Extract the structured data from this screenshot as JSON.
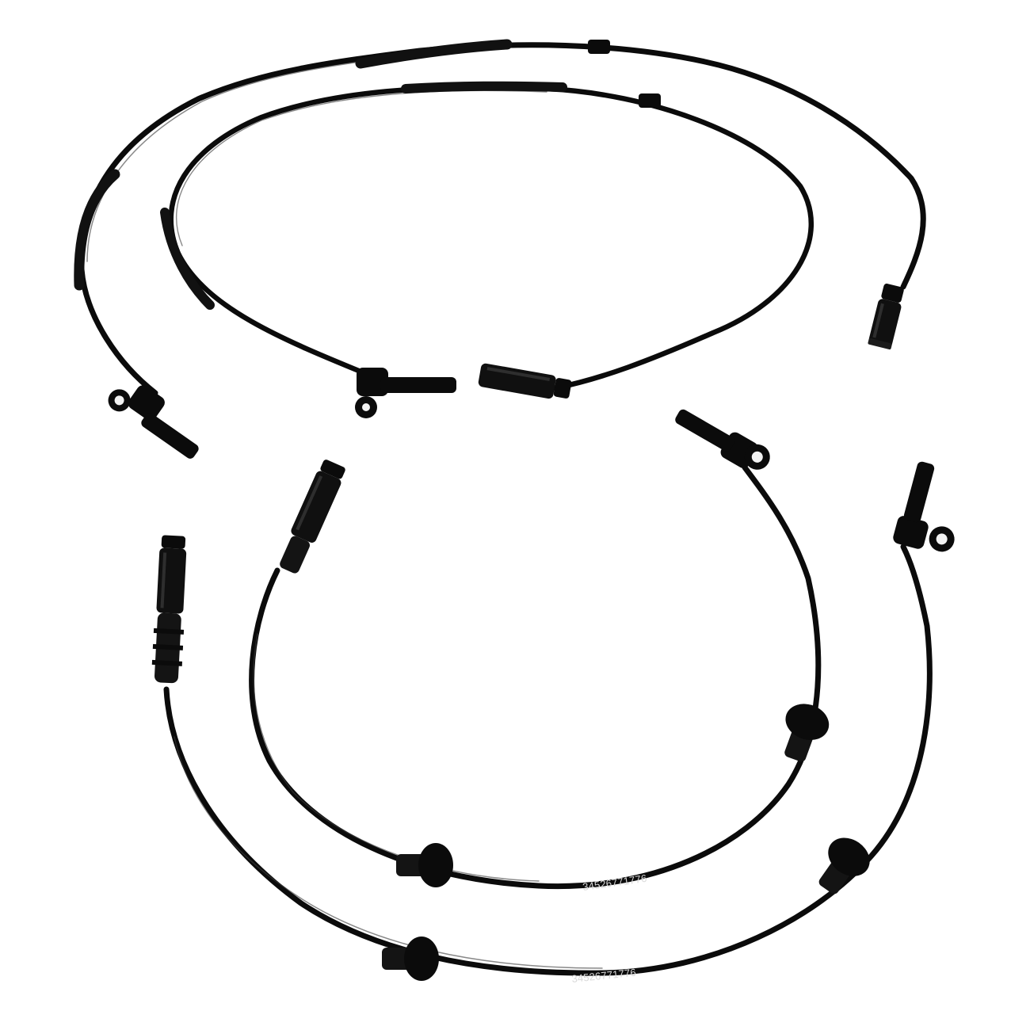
{
  "photo": {
    "background": "#ffffff",
    "cable_color": "#0b0b0b",
    "highlight_color": "#3a3a3a",
    "print_color": "#d9d9d9"
  },
  "cables": {
    "lower_inner": {
      "printed_text": "34526771776"
    },
    "lower_outer": {
      "printed_text": "34526771776"
    }
  }
}
